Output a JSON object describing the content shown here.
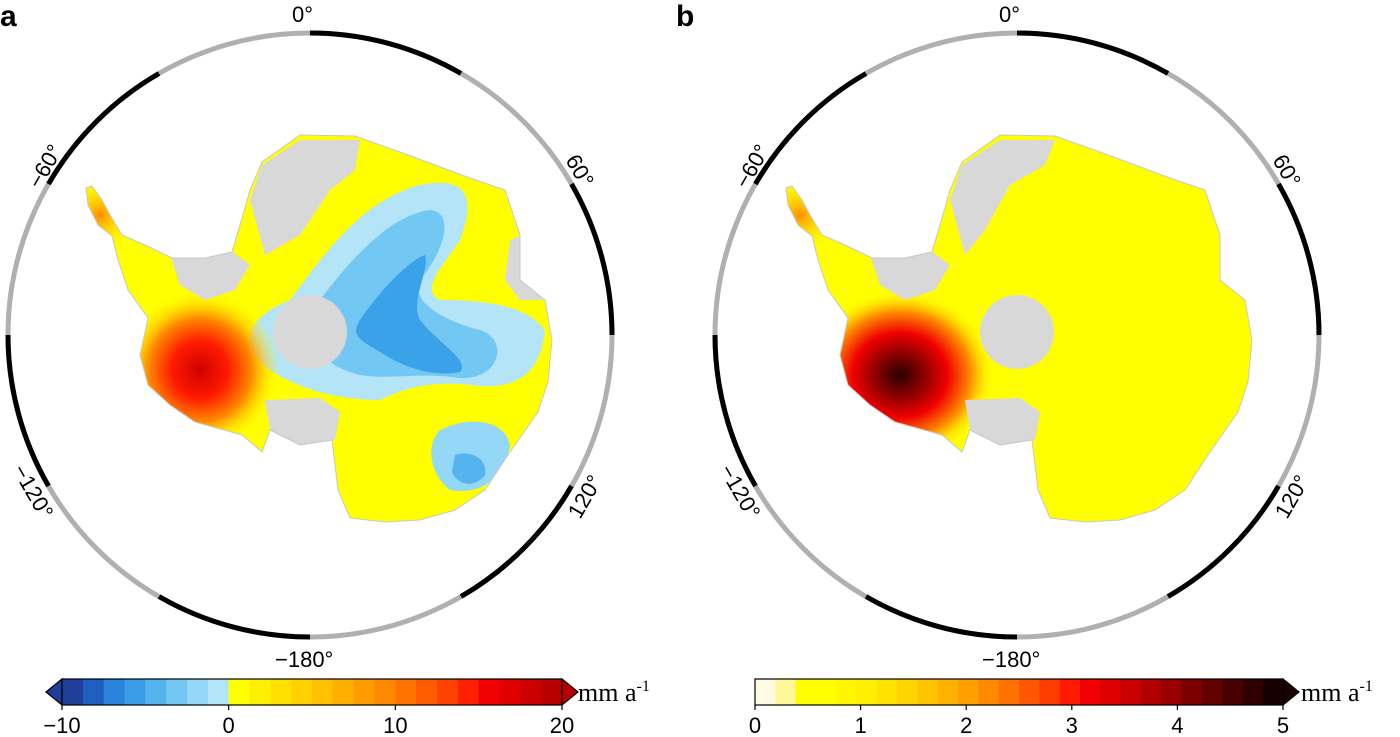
{
  "panels": [
    {
      "letter": "a",
      "lon_labels": {
        "top": "0°",
        "left": "−60°",
        "right": "60°",
        "bottom_left": "−120°",
        "bottom_right": "120°",
        "bottom": "−180°"
      },
      "colorbar": {
        "min": -10,
        "max": 20,
        "ticks": [
          "−10",
          "0",
          "10",
          "20"
        ],
        "colors": [
          "#1f3f9a",
          "#1e5fc0",
          "#2a82db",
          "#3a9be6",
          "#55b3ee",
          "#73c7f3",
          "#94d7f6",
          "#b3e4f8",
          "#ffff00",
          "#ffef00",
          "#ffe000",
          "#ffd100",
          "#ffc000",
          "#ffaf00",
          "#ff9c00",
          "#ff8800",
          "#ff7300",
          "#ff5d00",
          "#ff4200",
          "#ff2000",
          "#f00000",
          "#e00000",
          "#cc0000",
          "#b80000"
        ],
        "extend": "both",
        "unit": "mm a",
        "unit_sup": "-1"
      }
    },
    {
      "letter": "b",
      "lon_labels": {
        "top": "0°",
        "left": "−60°",
        "right": "60°",
        "bottom_left": "−120°",
        "bottom_right": "120°",
        "bottom": "−180°"
      },
      "colorbar": {
        "min": 0,
        "max": 5,
        "ticks": [
          "0",
          "1",
          "2",
          "3",
          "4",
          "5"
        ],
        "colors": [
          "#fffbe0",
          "#fff899",
          "#ffff00",
          "#ffff00",
          "#fff600",
          "#ffee00",
          "#ffe200",
          "#ffd400",
          "#ffc400",
          "#ffb200",
          "#ff9f00",
          "#ff8a00",
          "#ff7200",
          "#ff5800",
          "#ff3b00",
          "#ff1a00",
          "#f00000",
          "#dd0000",
          "#c80000",
          "#b00000",
          "#960000",
          "#7c0000",
          "#620000",
          "#480000",
          "#300000",
          "#180000"
        ],
        "extend": "max",
        "unit": "mm a",
        "unit_sup": "-1"
      }
    }
  ],
  "colors": {
    "land": "#d8d8d8",
    "yellow": "#ffff00",
    "blue_light": "#b3e4f8",
    "blue_mid": "#73c7f3",
    "blue_dark": "#3aa2e8",
    "red": "#ff0000",
    "dark_red": "#300000",
    "frame_black": "#000000",
    "frame_white": "#ffffff"
  }
}
